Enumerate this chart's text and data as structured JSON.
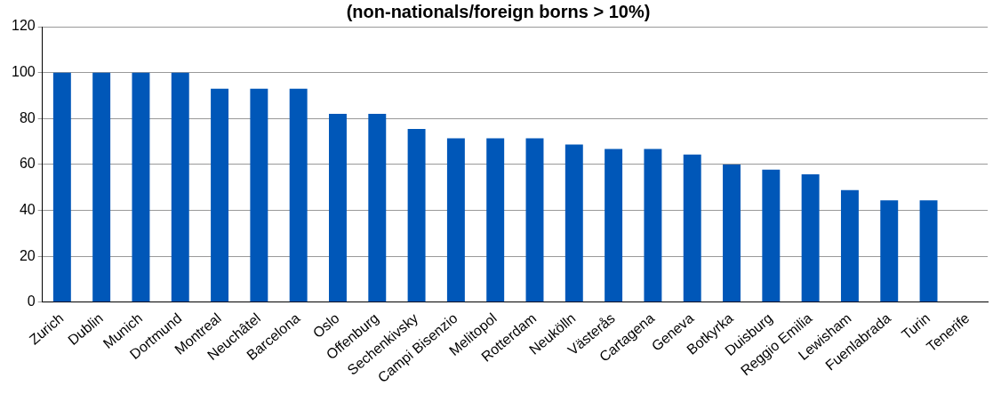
{
  "chart_data": {
    "type": "bar",
    "title": "(non-nationals/foreign borns > 10%)",
    "categories": [
      "Zurich",
      "Dublin",
      "Munich",
      "Dortmund",
      "Montreal",
      "Neuchâtel",
      "Barcelona",
      "Oslo",
      "Offenburg",
      "Sechenkivsky",
      "Campi Bisenzio",
      "Melitopol",
      "Rotterdam",
      "Neukölln",
      "Västerås",
      "Cartagena",
      "Geneva",
      "Botkyrka",
      "Duisburg",
      "Reggio Emilia",
      "Lewisham",
      "Fuenlabrada",
      "Turin",
      "Tenerife"
    ],
    "values": [
      100,
      100,
      100,
      100,
      93,
      93,
      93,
      82,
      82,
      75.5,
      71.4,
      71.4,
      71.4,
      68.7,
      66.7,
      66.7,
      64.3,
      60,
      57.7,
      55.7,
      48.8,
      44.4,
      44.4,
      null
    ],
    "color": "#0057b8",
    "ylim": [
      0,
      120
    ],
    "yticks": [
      0,
      20,
      40,
      60,
      80,
      100,
      120
    ],
    "grid": "y",
    "legend": false
  }
}
